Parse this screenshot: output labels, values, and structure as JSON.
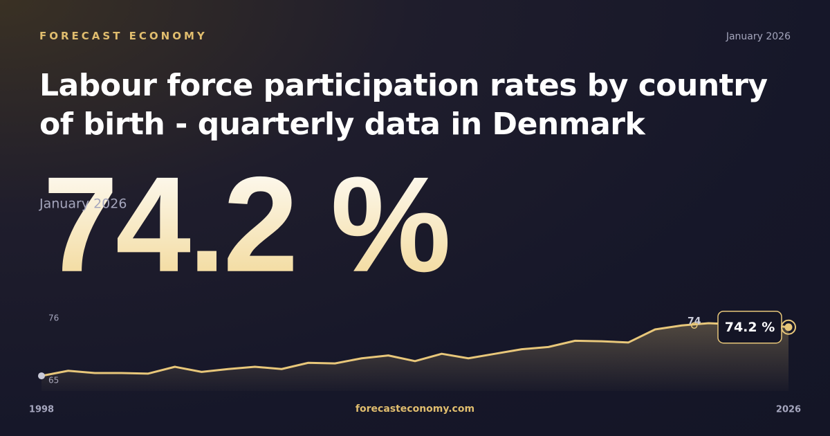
{
  "brand": "FORECAST ECONOMY",
  "date": "January 2026",
  "title": "Labour force participation rates by country of birth - quarterly data in Denmark",
  "headline": {
    "label": "74.2 %",
    "date": "January 2026"
  },
  "footer": "forecasteconomy.com",
  "chart_data": {
    "type": "line",
    "x": [
      1998,
      1999,
      2000,
      2001,
      2002,
      2003,
      2004,
      2005,
      2006,
      2007,
      2008,
      2009,
      2010,
      2011,
      2012,
      2013,
      2014,
      2015,
      2016,
      2017,
      2018,
      2019,
      2020,
      2021,
      2022,
      2023,
      2024,
      2025,
      2026
    ],
    "series": [
      {
        "name": "Denmark",
        "color": "#e8c77a",
        "values": [
          65.6,
          66.5,
          66.1,
          66.1,
          66.0,
          67.2,
          66.3,
          66.8,
          67.2,
          66.8,
          67.9,
          67.8,
          68.7,
          69.2,
          68.2,
          69.5,
          68.7,
          69.5,
          70.3,
          70.7,
          71.8,
          71.7,
          71.5,
          73.8,
          74.5,
          74.9,
          74.7,
          74.7,
          74.2
        ],
        "value_labels": [
          null,
          null,
          null,
          null,
          null,
          null,
          null,
          null,
          null,
          null,
          null,
          null,
          null,
          null,
          null,
          null,
          null,
          null,
          null,
          null,
          null,
          null,
          null,
          null,
          null,
          null,
          null,
          null,
          "74.2 %"
        ]
      }
    ],
    "annotations": [
      {
        "x": 2022,
        "text": "74"
      }
    ],
    "xlim": [
      1998,
      2026
    ],
    "xticks": [
      1998,
      2026
    ],
    "ylim": [
      65,
      76
    ],
    "yticks": [
      76,
      65
    ]
  }
}
